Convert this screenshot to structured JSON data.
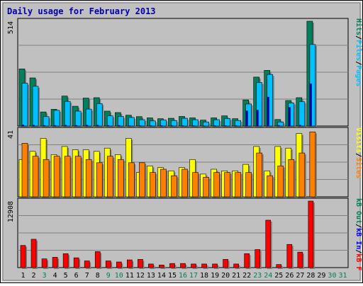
{
  "title": "Daily usage for February 2013",
  "colors": {
    "background": "#c0c0c0",
    "title": "#0000b0",
    "hits": "#00805c",
    "files": "#00c0ff",
    "pages": "#00c0ff",
    "visits": "#ffff00",
    "sites": "#ff8000",
    "kb_in": "#0000ff",
    "kb_out": "#00805c",
    "kb_f": "#ff0000",
    "pages_inner": "#0000b0"
  },
  "axis_labels": {
    "top": [
      {
        "text": "Hits",
        "color": "#00805c"
      },
      {
        "text": "/",
        "color": "#000000"
      },
      {
        "text": "Files",
        "color": "#00c0ff"
      },
      {
        "text": "/",
        "color": "#000000"
      },
      {
        "text": "Pages",
        "color": "#00c0ff"
      }
    ],
    "middle": [
      {
        "text": "Visits",
        "color": "#ffff00"
      },
      {
        "text": "/",
        "color": "#000000"
      },
      {
        "text": "Sites",
        "color": "#ff8000"
      }
    ],
    "bottom": [
      {
        "text": "kB Out",
        "color": "#00805c"
      },
      {
        "text": "/",
        "color": "#000000"
      },
      {
        "text": "kB In",
        "color": "#0000ff"
      },
      {
        "text": "/",
        "color": "#000000"
      },
      {
        "text": "kB F",
        "color": "#ff0000"
      }
    ]
  },
  "chart_data": {
    "type": "bar",
    "title": "Daily usage for February 2013",
    "categories": [
      "1",
      "2",
      "3",
      "4",
      "5",
      "6",
      "7",
      "8",
      "9",
      "10",
      "11",
      "12",
      "13",
      "14",
      "15",
      "16",
      "17",
      "18",
      "19",
      "20",
      "21",
      "22",
      "23",
      "24",
      "25",
      "26",
      "27",
      "28",
      "29",
      "30",
      "31"
    ],
    "category_colors": [
      "#000000",
      "#000000",
      "#00805c",
      "#000000",
      "#000000",
      "#000000",
      "#000000",
      "#000000",
      "#00805c",
      "#00805c",
      "#000000",
      "#000000",
      "#000000",
      "#000000",
      "#000000",
      "#00805c",
      "#00805c",
      "#000000",
      "#000000",
      "#000000",
      "#000000",
      "#000000",
      "#00805c",
      "#00805c",
      "#000000",
      "#000000",
      "#000000",
      "#000000",
      "#000000",
      "#00805c",
      "#00805c"
    ],
    "panels": [
      {
        "id": "hits-files-pages",
        "ymax": 514,
        "ymax_label": "514",
        "series": [
          {
            "name": "Hits",
            "values": [
              280,
              236,
              69,
              82,
              147,
              97,
              137,
              139,
              73,
              66,
              53,
              46,
              40,
              36,
              38,
              47,
              40,
              29,
              40,
              50,
              36,
              128,
              240,
              273,
              32,
              125,
              139,
              514,
              0,
              0,
              0
            ]
          },
          {
            "name": "Files",
            "values": [
              210,
              195,
              46,
              77,
              121,
              73,
              83,
              110,
              50,
              47,
              42,
              31,
              25,
              30,
              27,
              38,
              31,
              20,
              31,
              37,
              27,
              108,
              213,
              253,
              20,
              113,
              119,
              400,
              0,
              0,
              0
            ]
          },
          {
            "name": "Pages",
            "values": [
              6,
              5,
              4,
              4,
              5,
              4,
              5,
              5,
              4,
              4,
              3,
              3,
              3,
              3,
              3,
              3,
              3,
              2,
              3,
              3,
              3,
              75,
              79,
              143,
              4,
              92,
              5,
              208,
              0,
              0,
              0
            ]
          }
        ]
      },
      {
        "id": "visits-sites",
        "ymax": 41,
        "ymax_label": "41",
        "series": [
          {
            "name": "Visits",
            "values": [
              23,
              28,
              36,
              26,
              31,
              29,
              29,
              28,
              30,
              26,
              36,
              15,
              19,
              18,
              16,
              18,
              23,
              14,
              17,
              16,
              16,
              20,
              31,
              16,
              31,
              30,
              39,
              0,
              0,
              0,
              0
            ]
          },
          {
            "name": "Sites",
            "values": [
              33,
              25,
              23,
              25,
              25,
              25,
              23,
              21,
              25,
              23,
              21,
              21,
              15,
              17,
              13,
              17,
              15,
              12,
              15,
              15,
              15,
              15,
              27,
              13,
              19,
              23,
              27,
              40,
              0,
              0,
              0
            ]
          }
        ]
      },
      {
        "id": "kbytes",
        "ymax": 12908,
        "ymax_label": "12908",
        "series": [
          {
            "name": "kB F",
            "values": [
              4300,
              5500,
              1700,
              2000,
              2700,
              1900,
              1300,
              3100,
              1300,
              1100,
              1500,
              1600,
              700,
              500,
              800,
              800,
              700,
              700,
              700,
              1600,
              700,
              2700,
              3500,
              9200,
              600,
              4500,
              3000,
              12908,
              0,
              0,
              0
            ]
          }
        ]
      }
    ]
  }
}
